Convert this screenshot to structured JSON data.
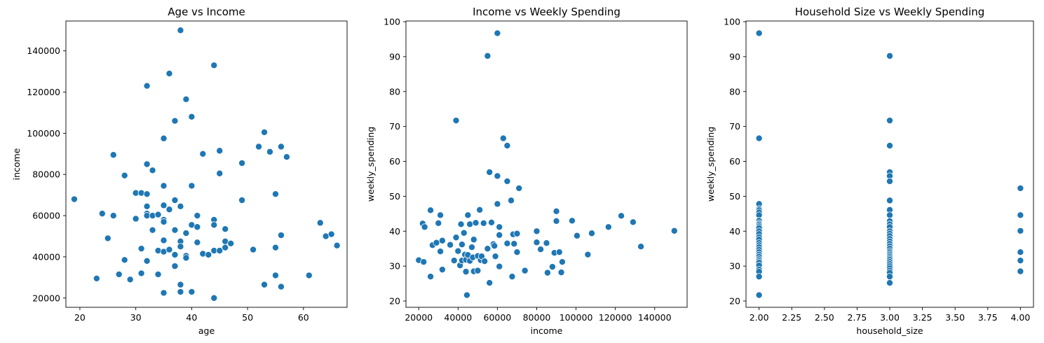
{
  "chart_data": [
    {
      "type": "scatter",
      "title": "Age vs Income",
      "xlabel": "age",
      "ylabel": "income",
      "xlim": [
        17.5,
        67.8
      ],
      "ylim": [
        15500,
        154500
      ],
      "xticks": [
        "20",
        "30",
        "40",
        "50",
        "60"
      ],
      "yticks": [
        "20000",
        "40000",
        "60000",
        "80000",
        "100000",
        "120000",
        "140000"
      ],
      "xtick_values": [
        20,
        30,
        40,
        50,
        60
      ],
      "ytick_values": [
        20000,
        40000,
        60000,
        80000,
        100000,
        120000,
        140000
      ],
      "grid": false,
      "color": "#1f77b4",
      "points": [
        [
          19,
          68000
        ],
        [
          23,
          29500
        ],
        [
          24,
          61000
        ],
        [
          25,
          49000
        ],
        [
          26,
          89500
        ],
        [
          26,
          60000
        ],
        [
          27,
          31500
        ],
        [
          28,
          79500
        ],
        [
          28,
          38500
        ],
        [
          29,
          29000
        ],
        [
          30,
          71000
        ],
        [
          30,
          58500
        ],
        [
          31,
          44000
        ],
        [
          31,
          32000
        ],
        [
          31,
          71000
        ],
        [
          32,
          123000
        ],
        [
          32,
          85000
        ],
        [
          32,
          70500
        ],
        [
          32,
          64500
        ],
        [
          32,
          61000
        ],
        [
          32,
          60000
        ],
        [
          32,
          38000
        ],
        [
          33,
          82000
        ],
        [
          33,
          60000
        ],
        [
          33,
          53000
        ],
        [
          34,
          60500
        ],
        [
          34,
          43000
        ],
        [
          34,
          31500
        ],
        [
          35,
          97500
        ],
        [
          35,
          74500
        ],
        [
          35,
          65000
        ],
        [
          35,
          58000
        ],
        [
          35,
          57000
        ],
        [
          35,
          48000
        ],
        [
          35,
          42500
        ],
        [
          35,
          22500
        ],
        [
          36,
          129000
        ],
        [
          36,
          63000
        ],
        [
          36,
          43500
        ],
        [
          37,
          106000
        ],
        [
          37,
          67500
        ],
        [
          37,
          53000
        ],
        [
          37,
          41000
        ],
        [
          37,
          35500
        ],
        [
          38,
          150000
        ],
        [
          38,
          64500
        ],
        [
          38,
          47500
        ],
        [
          38,
          45000
        ],
        [
          38,
          26500
        ],
        [
          38,
          23000
        ],
        [
          39,
          116500
        ],
        [
          39,
          51500
        ],
        [
          39,
          40500
        ],
        [
          39,
          39500
        ],
        [
          40,
          108000
        ],
        [
          40,
          74500
        ],
        [
          40,
          55500
        ],
        [
          40,
          23000
        ],
        [
          41,
          60000
        ],
        [
          41,
          54500
        ],
        [
          41,
          47000
        ],
        [
          42,
          90000
        ],
        [
          42,
          41500
        ],
        [
          43,
          41000
        ],
        [
          44,
          133000
        ],
        [
          44,
          58000
        ],
        [
          44,
          55500
        ],
        [
          44,
          43000
        ],
        [
          44,
          20000
        ],
        [
          45,
          91500
        ],
        [
          45,
          80500
        ],
        [
          45,
          43000
        ],
        [
          46,
          53500
        ],
        [
          46,
          47500
        ],
        [
          46,
          44500
        ],
        [
          47,
          46500
        ],
        [
          49,
          85500
        ],
        [
          49,
          67500
        ],
        [
          51,
          43500
        ],
        [
          52,
          93500
        ],
        [
          53,
          100500
        ],
        [
          53,
          26500
        ],
        [
          54,
          91000
        ],
        [
          55,
          70500
        ],
        [
          55,
          44500
        ],
        [
          55,
          31000
        ],
        [
          56,
          93500
        ],
        [
          56,
          50500
        ],
        [
          56,
          25500
        ],
        [
          57,
          88500
        ],
        [
          61,
          31000
        ],
        [
          63,
          56500
        ],
        [
          64,
          50000
        ],
        [
          65,
          51000
        ],
        [
          66,
          45500
        ]
      ]
    },
    {
      "type": "scatter",
      "title": "Income vs Weekly Spending",
      "xlabel": "income",
      "ylabel": "weekly_spending",
      "xlim": [
        13500,
        156500
      ],
      "ylim": [
        18200,
        100200
      ],
      "xticks": [
        "20000",
        "40000",
        "60000",
        "80000",
        "100000",
        "120000",
        "140000"
      ],
      "yticks": [
        "20",
        "30",
        "40",
        "50",
        "60",
        "70",
        "80",
        "90",
        "100"
      ],
      "xtick_values": [
        20000,
        40000,
        60000,
        80000,
        100000,
        120000,
        140000
      ],
      "ytick_values": [
        20,
        30,
        40,
        50,
        60,
        70,
        80,
        90,
        100
      ],
      "grid": false,
      "color": "#1f77b4",
      "points": [
        [
          20000,
          31.7
        ],
        [
          22000,
          42.2
        ],
        [
          22500,
          31.2
        ],
        [
          23000,
          41.2
        ],
        [
          26000,
          46.0
        ],
        [
          26000,
          27.0
        ],
        [
          27000,
          36.0
        ],
        [
          29000,
          36.7
        ],
        [
          30000,
          42.3
        ],
        [
          31000,
          44.6
        ],
        [
          31000,
          34.2
        ],
        [
          32000,
          37.3
        ],
        [
          32000,
          29.0
        ],
        [
          36000,
          36.1
        ],
        [
          38000,
          31.6
        ],
        [
          39000,
          71.7
        ],
        [
          39000,
          38.2
        ],
        [
          40000,
          34.3
        ],
        [
          41000,
          30.2
        ],
        [
          41500,
          42.0
        ],
        [
          42000,
          36.2
        ],
        [
          42000,
          31.6
        ],
        [
          43000,
          39.5
        ],
        [
          43500,
          33.3
        ],
        [
          44000,
          31.8
        ],
        [
          44000,
          28.4
        ],
        [
          44500,
          21.7
        ],
        [
          45000,
          44.6
        ],
        [
          45000,
          33.2
        ],
        [
          46000,
          42.0
        ],
        [
          46000,
          31.5
        ],
        [
          47000,
          35.4
        ],
        [
          47500,
          32.5
        ],
        [
          48000,
          37.6
        ],
        [
          48000,
          28.5
        ],
        [
          49000,
          42.4
        ],
        [
          50000,
          32.9
        ],
        [
          50000,
          28.7
        ],
        [
          51000,
          46.1
        ],
        [
          51500,
          31.7
        ],
        [
          52000,
          32.8
        ],
        [
          53000,
          42.3
        ],
        [
          53500,
          31.4
        ],
        [
          55000,
          90.2
        ],
        [
          55000,
          35.0
        ],
        [
          56000,
          25.2
        ],
        [
          56000,
          56.9
        ],
        [
          57000,
          42.5
        ],
        [
          58000,
          36.3
        ],
        [
          58500,
          35.8
        ],
        [
          59000,
          32.8
        ],
        [
          60000,
          96.7
        ],
        [
          60000,
          55.8
        ],
        [
          60000,
          47.8
        ],
        [
          61000,
          41.2
        ],
        [
          61000,
          38.9
        ],
        [
          61000,
          29.9
        ],
        [
          63000,
          66.6
        ],
        [
          65000,
          64.5
        ],
        [
          65000,
          54.3
        ],
        [
          65000,
          36.5
        ],
        [
          67000,
          48.8
        ],
        [
          67500,
          27.0
        ],
        [
          68000,
          39.1
        ],
        [
          68500,
          36.4
        ],
        [
          70000,
          39.3
        ],
        [
          70000,
          34.0
        ],
        [
          71000,
          52.3
        ],
        [
          74000,
          28.7
        ],
        [
          80000,
          40.0
        ],
        [
          80000,
          36.8
        ],
        [
          82000,
          34.8
        ],
        [
          85000,
          36.6
        ],
        [
          85500,
          28.1
        ],
        [
          88000,
          29.8
        ],
        [
          89000,
          33.8
        ],
        [
          90000,
          45.7
        ],
        [
          90000,
          42.9
        ],
        [
          91500,
          34.0
        ],
        [
          92500,
          28.2
        ],
        [
          93000,
          31.2
        ],
        [
          98000,
          43.0
        ],
        [
          100500,
          38.7
        ],
        [
          106000,
          33.3
        ],
        [
          108000,
          39.4
        ],
        [
          116500,
          41.2
        ],
        [
          123000,
          44.4
        ],
        [
          129000,
          42.6
        ],
        [
          133000,
          35.6
        ],
        [
          150000,
          40.1
        ]
      ]
    },
    {
      "type": "scatter",
      "title": "Household Size vs Weekly Spending",
      "xlabel": "household_size",
      "ylabel": "weekly_spending",
      "xlim": [
        1.9,
        4.1
      ],
      "ylim": [
        18200,
        100200
      ],
      "y_scale_note": "",
      "xticks": [
        "2.00",
        "2.25",
        "2.50",
        "2.75",
        "3.00",
        "3.25",
        "3.50",
        "3.75",
        "4.00"
      ],
      "yticks": [
        "20",
        "30",
        "40",
        "50",
        "60",
        "70",
        "80",
        "90",
        "100"
      ],
      "xtick_values": [
        2.0,
        2.25,
        2.5,
        2.75,
        3.0,
        3.25,
        3.5,
        3.75,
        4.0
      ],
      "ytick_values": [
        20,
        30,
        40,
        50,
        60,
        70,
        80,
        90,
        100
      ],
      "grid": false,
      "color": "#1f77b4",
      "points": [
        [
          2,
          96.7
        ],
        [
          2,
          66.6
        ],
        [
          2,
          47.8
        ],
        [
          2,
          46.4
        ],
        [
          2,
          46.0
        ],
        [
          2,
          45.4
        ],
        [
          2,
          44.6
        ],
        [
          2,
          43.0
        ],
        [
          2,
          42.3
        ],
        [
          2,
          41.9
        ],
        [
          2,
          41.4
        ],
        [
          2,
          40.9
        ],
        [
          2,
          40.0
        ],
        [
          2,
          39.2
        ],
        [
          2,
          38.3
        ],
        [
          2,
          37.6
        ],
        [
          2,
          36.7
        ],
        [
          2,
          36.0
        ],
        [
          2,
          35.4
        ],
        [
          2,
          34.7
        ],
        [
          2,
          34.0
        ],
        [
          2,
          33.3
        ],
        [
          2,
          32.7
        ],
        [
          2,
          32.0
        ],
        [
          2,
          31.5
        ],
        [
          2,
          31.0
        ],
        [
          2,
          30.2
        ],
        [
          2,
          29.0
        ],
        [
          2,
          28.4
        ],
        [
          2,
          27.0
        ],
        [
          2,
          21.7
        ],
        [
          3,
          90.2
        ],
        [
          3,
          71.7
        ],
        [
          3,
          64.5
        ],
        [
          3,
          56.9
        ],
        [
          3,
          55.8
        ],
        [
          3,
          54.3
        ],
        [
          3,
          48.8
        ],
        [
          3,
          46.1
        ],
        [
          3,
          44.6
        ],
        [
          3,
          42.9
        ],
        [
          3,
          42.0
        ],
        [
          3,
          41.2
        ],
        [
          3,
          40.0
        ],
        [
          3,
          39.3
        ],
        [
          3,
          38.6
        ],
        [
          3,
          37.8
        ],
        [
          3,
          37.1
        ],
        [
          3,
          36.4
        ],
        [
          3,
          35.7
        ],
        [
          3,
          35.0
        ],
        [
          3,
          34.3
        ],
        [
          3,
          33.8
        ],
        [
          3,
          33.3
        ],
        [
          3,
          32.8
        ],
        [
          3,
          32.3
        ],
        [
          3,
          31.8
        ],
        [
          3,
          31.2
        ],
        [
          3,
          30.6
        ],
        [
          3,
          30.0
        ],
        [
          3,
          29.4
        ],
        [
          3,
          28.7
        ],
        [
          3,
          28.1
        ],
        [
          3,
          27.0
        ],
        [
          3,
          25.2
        ],
        [
          4,
          52.3
        ],
        [
          4,
          44.6
        ],
        [
          4,
          40.1
        ],
        [
          4,
          34.0
        ],
        [
          4,
          31.6
        ],
        [
          4,
          28.5
        ]
      ]
    }
  ]
}
